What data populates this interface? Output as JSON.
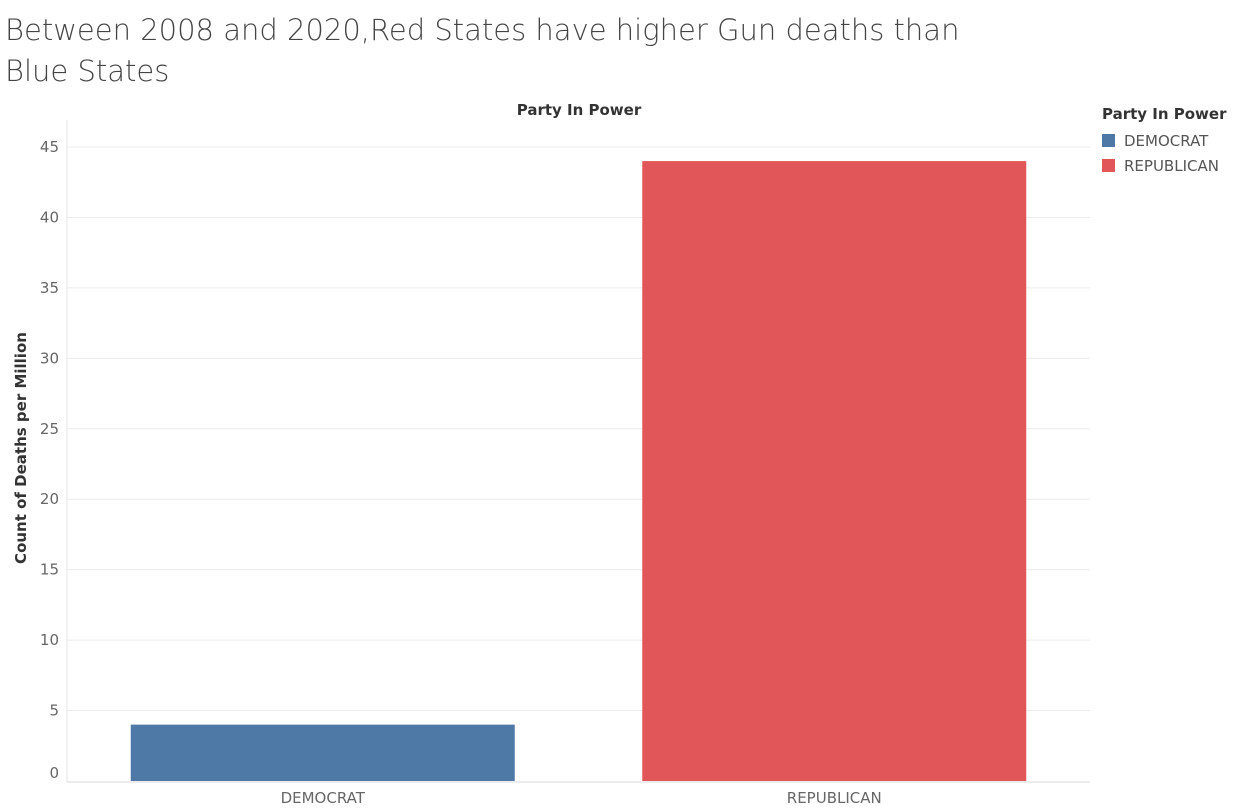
{
  "chart_data": {
    "type": "bar",
    "title": "Between 2008 and 2020,Red States have higher Gun deaths than Blue States",
    "column_header": "Party In Power",
    "xlabel": "",
    "ylabel": "Count of Deaths per Million",
    "categories": [
      "DEMOCRAT",
      "REPUBLICAN"
    ],
    "values": [
      4,
      44
    ],
    "colors": [
      "#4e79a7",
      "#e15759"
    ],
    "ylim": [
      0,
      45
    ],
    "yticks": [
      0,
      5,
      10,
      15,
      20,
      25,
      30,
      35,
      40,
      45
    ],
    "grid": true,
    "legend": {
      "title": "Party In Power",
      "placement": "top-right",
      "items": [
        {
          "label": "DEMOCRAT",
          "color": "#4e79a7"
        },
        {
          "label": "REPUBLICAN",
          "color": "#e15759"
        }
      ]
    }
  }
}
